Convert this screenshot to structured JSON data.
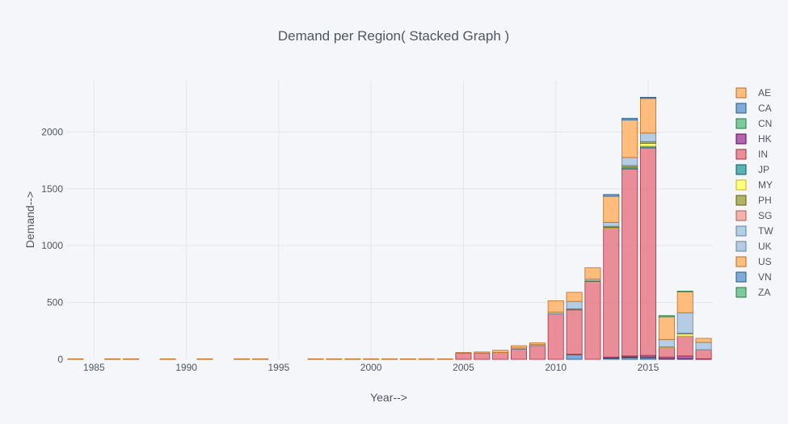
{
  "chart_data": {
    "type": "bar",
    "stacked": true,
    "title": "Demand per Region( Stacked Graph )",
    "xlabel": "Year-->",
    "ylabel": "Demand-->",
    "x": [
      1984,
      1986,
      1987,
      1989,
      1991,
      1993,
      1994,
      1997,
      1998,
      1999,
      2000,
      2001,
      2002,
      2003,
      2004,
      2005,
      2006,
      2007,
      2008,
      2009,
      2010,
      2011,
      2012,
      2013,
      2014,
      2015,
      2016,
      2017,
      2018
    ],
    "xlim": [
      1983.5,
      2018.5
    ],
    "ylim": [
      0,
      2450
    ],
    "x_ticks": [
      "1985",
      "1990",
      "1995",
      "2000",
      "2005",
      "2010",
      "2015"
    ],
    "y_ticks": [
      "0",
      "500",
      "1000",
      "1500",
      "2000"
    ],
    "grid": true,
    "legend_position": "right",
    "series": [
      {
        "name": "AE",
        "color": "#ffb366",
        "values": [
          0,
          0,
          0,
          0,
          0,
          0,
          0,
          0,
          0,
          0,
          0,
          0,
          0,
          0,
          0,
          0,
          0,
          0,
          0,
          0,
          0,
          0,
          0,
          0,
          0,
          0,
          0,
          0,
          0
        ]
      },
      {
        "name": "CA",
        "color": "#6a9fd0",
        "values": [
          0,
          0,
          0,
          0,
          0,
          0,
          0,
          0,
          0,
          0,
          0,
          0,
          0,
          0,
          0,
          0,
          0,
          0,
          0,
          0,
          0,
          40,
          0,
          10,
          15,
          10,
          0,
          0,
          0
        ]
      },
      {
        "name": "CN",
        "color": "#66c28a",
        "values": [
          0,
          0,
          0,
          0,
          0,
          0,
          0,
          0,
          0,
          0,
          0,
          0,
          0,
          0,
          0,
          0,
          0,
          0,
          0,
          0,
          0,
          5,
          0,
          0,
          5,
          10,
          5,
          5,
          0
        ]
      },
      {
        "name": "HK",
        "color": "#a64ca6",
        "values": [
          0,
          0,
          0,
          0,
          0,
          0,
          0,
          0,
          0,
          0,
          0,
          0,
          0,
          0,
          0,
          0,
          0,
          0,
          0,
          0,
          0,
          0,
          0,
          10,
          10,
          15,
          15,
          25,
          5
        ]
      },
      {
        "name": "IN",
        "color": "#e67a87",
        "values": [
          0,
          0,
          0,
          0,
          0,
          0,
          0,
          0,
          0,
          0,
          0,
          0,
          0,
          0,
          0,
          55,
          55,
          60,
          90,
          120,
          400,
          390,
          685,
          1135,
          1645,
          1825,
          85,
          175,
          80
        ]
      },
      {
        "name": "JP",
        "color": "#3fa6a6",
        "values": [
          0,
          0,
          0,
          0,
          0,
          0,
          0,
          0,
          0,
          0,
          0,
          0,
          0,
          0,
          0,
          0,
          0,
          0,
          0,
          0,
          0,
          0,
          0,
          0,
          10,
          15,
          0,
          0,
          0
        ]
      },
      {
        "name": "MY",
        "color": "#ffff66",
        "values": [
          0,
          0,
          0,
          0,
          0,
          0,
          0,
          0,
          0,
          0,
          0,
          0,
          0,
          0,
          0,
          0,
          0,
          0,
          0,
          0,
          0,
          0,
          0,
          5,
          5,
          25,
          5,
          20,
          0
        ]
      },
      {
        "name": "PH",
        "color": "#a6a64c",
        "values": [
          0,
          0,
          0,
          0,
          0,
          0,
          0,
          0,
          0,
          0,
          0,
          0,
          0,
          0,
          0,
          0,
          0,
          0,
          0,
          0,
          0,
          10,
          5,
          10,
          15,
          15,
          0,
          5,
          0
        ]
      },
      {
        "name": "SG",
        "color": "#f2a69c",
        "values": [
          0,
          0,
          0,
          0,
          0,
          0,
          0,
          0,
          0,
          0,
          0,
          0,
          0,
          0,
          0,
          0,
          0,
          0,
          0,
          0,
          0,
          0,
          0,
          0,
          0,
          0,
          0,
          0,
          0
        ]
      },
      {
        "name": "TW",
        "color": "#a6c9e0",
        "values": [
          0,
          0,
          0,
          0,
          0,
          0,
          0,
          0,
          0,
          0,
          0,
          0,
          0,
          0,
          0,
          0,
          0,
          0,
          0,
          0,
          0,
          0,
          0,
          0,
          0,
          0,
          0,
          0,
          0
        ]
      },
      {
        "name": "UK",
        "color": "#a9c6e0",
        "values": [
          0,
          0,
          0,
          0,
          0,
          0,
          0,
          0,
          0,
          0,
          0,
          0,
          0,
          0,
          0,
          0,
          0,
          0,
          10,
          10,
          15,
          65,
          15,
          35,
          70,
          75,
          65,
          180,
          65
        ]
      },
      {
        "name": "US",
        "color": "#ffb366",
        "values": [
          5,
          5,
          5,
          5,
          5,
          5,
          5,
          5,
          5,
          5,
          5,
          5,
          5,
          5,
          5,
          5,
          10,
          20,
          20,
          15,
          100,
          80,
          100,
          230,
          330,
          305,
          200,
          185,
          35
        ]
      },
      {
        "name": "VN",
        "color": "#6a9fd0",
        "values": [
          0,
          0,
          0,
          0,
          0,
          0,
          0,
          0,
          0,
          0,
          0,
          0,
          0,
          0,
          0,
          0,
          0,
          0,
          0,
          0,
          0,
          0,
          0,
          15,
          15,
          10,
          0,
          0,
          0
        ]
      },
      {
        "name": "ZA",
        "color": "#66c28a",
        "values": [
          0,
          0,
          0,
          0,
          0,
          0,
          0,
          0,
          0,
          0,
          0,
          0,
          0,
          0,
          0,
          0,
          0,
          0,
          0,
          0,
          0,
          0,
          0,
          0,
          0,
          0,
          10,
          5,
          0
        ]
      }
    ]
  },
  "colors": {
    "background": "#f5f6f9",
    "grid": "#e3e6ec",
    "text": "#4d5663"
  }
}
